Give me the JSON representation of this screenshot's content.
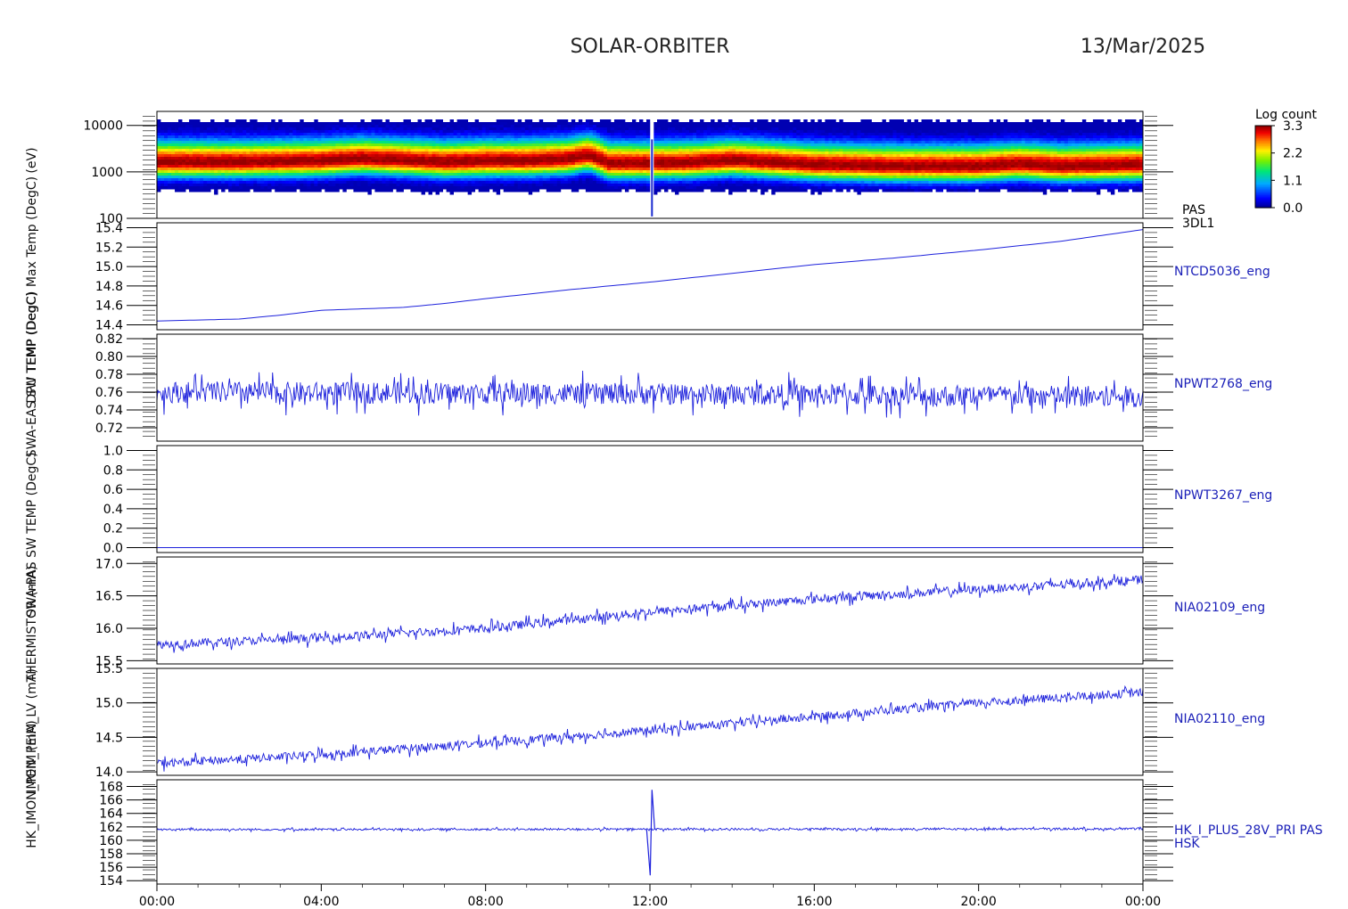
{
  "header": {
    "mission": "SOLAR-ORBITER",
    "date": "13/Mar/2025"
  },
  "overlapped_ylabels": [
    "(eV)",
    "Max Temp (DegC)",
    "DPU TEMP (DegC)",
    "SWA-EAS SW TEMP (DegC)",
    "SWA-PAS SW TEMP (DegC)",
    "THERMISTOR (mA)",
    "IMON_PEIM_LV (mA)",
    "HK_IMON_PEIM (mA)"
  ],
  "colorbar": {
    "title": "Log count",
    "ticks": [
      "3.3",
      "2.2",
      "1.1",
      "0.0"
    ],
    "range": [
      0.0,
      3.3
    ]
  },
  "x_axis": {
    "tick_labels": [
      "00:00",
      "04:00",
      "08:00",
      "12:00",
      "16:00",
      "20:00",
      "00:00"
    ],
    "range_hours": [
      0,
      24
    ]
  },
  "chart_data": [
    {
      "type": "heatmap",
      "name": "PAS 3DL1",
      "right_label_lines": [
        "PAS",
        "3DL1"
      ],
      "y_scale": "log",
      "ylim": [
        100,
        20000
      ],
      "yticks": [
        10000,
        1000,
        100
      ],
      "ytick_labels": [
        "10000",
        "1000",
        "100"
      ],
      "peak_energy_eV": [
        [
          0,
          1600
        ],
        [
          2,
          1600
        ],
        [
          4,
          1700
        ],
        [
          5,
          1900
        ],
        [
          7,
          1600
        ],
        [
          8,
          1700
        ],
        [
          9,
          1700
        ],
        [
          10,
          1850
        ],
        [
          10.5,
          2200
        ],
        [
          11,
          1500
        ],
        [
          12,
          1500
        ],
        [
          13,
          1550
        ],
        [
          14,
          1750
        ],
        [
          16,
          1400
        ],
        [
          18,
          1300
        ],
        [
          20,
          1300
        ],
        [
          21,
          1450
        ],
        [
          22,
          1300
        ],
        [
          24,
          1400
        ]
      ],
      "color_range": [
        0.0,
        3.3
      ]
    },
    {
      "type": "line",
      "name": "NTCD5036_eng",
      "ylim": [
        14.35,
        15.45
      ],
      "yticks": [
        14.4,
        14.6,
        14.8,
        15.0,
        15.2,
        15.4
      ],
      "ytick_labels": [
        "14.4",
        "14.6",
        "14.8",
        "15.0",
        "15.2",
        "15.4"
      ],
      "x_hours": [
        0,
        2,
        3,
        4,
        6,
        7,
        8,
        10,
        12,
        14,
        16,
        18,
        20,
        22,
        24
      ],
      "values": [
        14.44,
        14.46,
        14.5,
        14.55,
        14.58,
        14.62,
        14.67,
        14.76,
        14.84,
        14.93,
        15.02,
        15.09,
        15.17,
        15.26,
        15.38
      ],
      "noise": 0.0
    },
    {
      "type": "line",
      "name": "NPWT2768_eng",
      "ylim": [
        0.705,
        0.825
      ],
      "yticks": [
        0.72,
        0.74,
        0.76,
        0.78,
        0.8,
        0.82
      ],
      "ytick_labels": [
        "0.72",
        "0.74",
        "0.76",
        "0.78",
        "0.80",
        "0.82"
      ],
      "x_hours": [
        0,
        12,
        24
      ],
      "values": [
        0.76,
        0.758,
        0.755
      ],
      "noise": 0.04
    },
    {
      "type": "line",
      "name": "NPWT3267_eng",
      "ylim": [
        -0.05,
        1.05
      ],
      "yticks": [
        0.0,
        0.2,
        0.4,
        0.6,
        0.8,
        1.0
      ],
      "ytick_labels": [
        "0.0",
        "0.2",
        "0.4",
        "0.6",
        "0.8",
        "1.0"
      ],
      "x_hours": [
        0,
        24
      ],
      "values": [
        0.0,
        0.0
      ],
      "noise": 0.0
    },
    {
      "type": "line",
      "name": "NIA02109_eng",
      "ylim": [
        15.45,
        17.1
      ],
      "yticks": [
        15.5,
        16.0,
        16.5,
        17.0
      ],
      "ytick_labels": [
        "15.5",
        "16.0",
        "16.5",
        "17.0"
      ],
      "x_hours": [
        0,
        4,
        8,
        12,
        16,
        20,
        24
      ],
      "values": [
        15.75,
        15.85,
        16.0,
        16.25,
        16.45,
        16.6,
        16.75
      ],
      "noise": 0.22
    },
    {
      "type": "line",
      "name": "NIA02110_eng",
      "ylim": [
        13.95,
        15.5
      ],
      "yticks": [
        14.0,
        14.5,
        15.0,
        15.5
      ],
      "ytick_labels": [
        "14.0",
        "14.5",
        "15.0",
        "15.5"
      ],
      "x_hours": [
        0,
        4,
        8,
        12,
        16,
        20,
        24
      ],
      "values": [
        14.12,
        14.25,
        14.42,
        14.6,
        14.8,
        15.0,
        15.15
      ],
      "noise": 0.2
    },
    {
      "type": "line",
      "name": "HK_I_PLUS_28V_PRI PAS HSK",
      "right_label_lines": [
        "HK_I_PLUS_28V_PRI PAS",
        "HSK"
      ],
      "ylim": [
        153.5,
        169
      ],
      "yticks": [
        154,
        156,
        158,
        160,
        162,
        164,
        166,
        168
      ],
      "ytick_labels": [
        "154",
        "156",
        "158",
        "160",
        "162",
        "164",
        "166",
        "168"
      ],
      "x_hours": [
        0,
        24
      ],
      "values": [
        161.6,
        161.7
      ],
      "noise": 0.5,
      "spike": {
        "x_hours": 12.05,
        "min": 154.8,
        "max": 167.5
      }
    }
  ]
}
